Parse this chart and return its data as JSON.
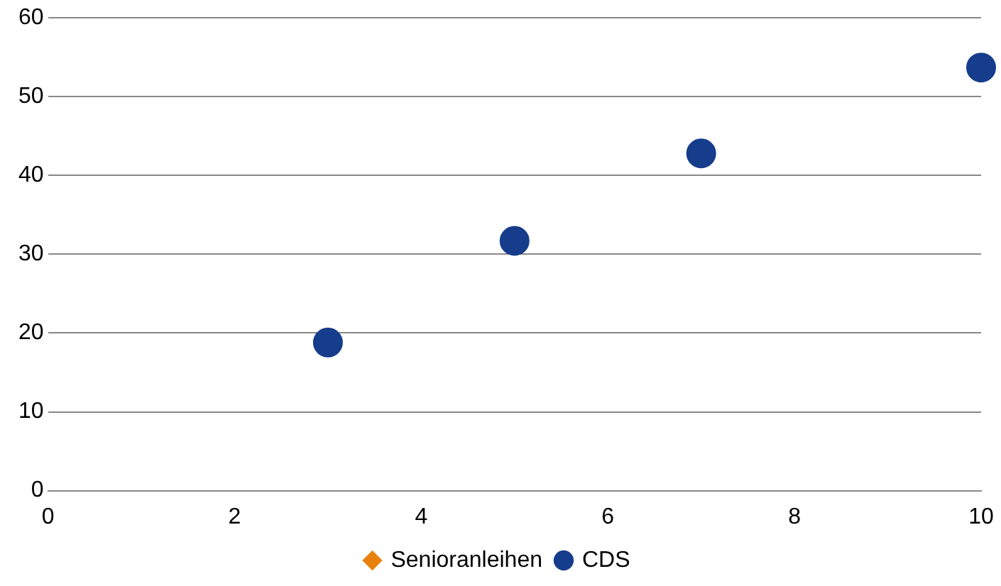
{
  "chart_data": {
    "type": "scatter",
    "xlim": [
      0,
      10
    ],
    "xticks": [
      0,
      2,
      4,
      6,
      8,
      10
    ],
    "ylim": [
      0,
      60
    ],
    "yticks": [
      0,
      10,
      20,
      30,
      40,
      50,
      60
    ],
    "grid": "y",
    "legend": "bottom",
    "series": [
      {
        "name": "Senioranleihen",
        "color": "#e8820c",
        "marker": "diamond"
      },
      {
        "name": "CDS",
        "color": "#163d8c",
        "marker": "circle",
        "x": [
          3,
          5,
          7,
          10
        ],
        "values": [
          18.8,
          31.7,
          42.8,
          53.7
        ]
      }
    ]
  }
}
